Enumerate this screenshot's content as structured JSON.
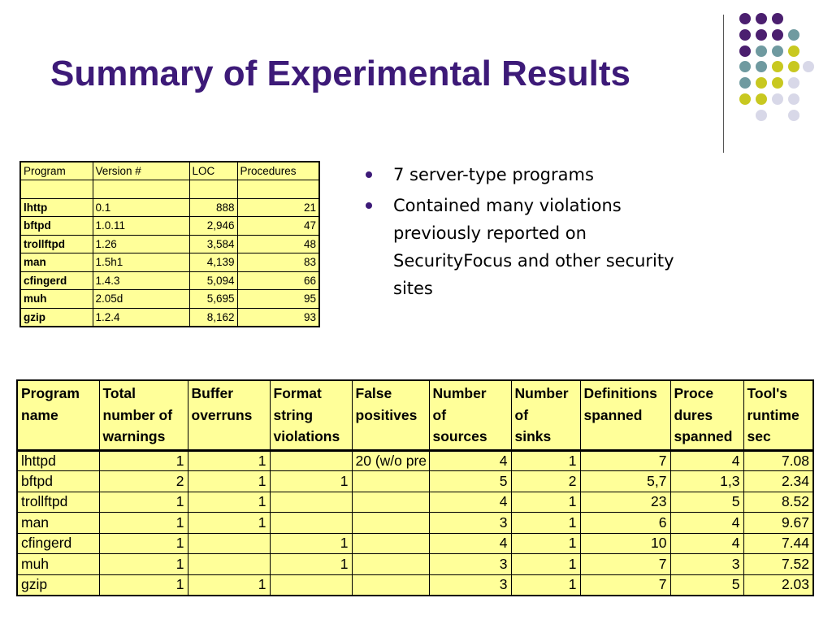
{
  "slide": {
    "title": "Summary of Experimental Results"
  },
  "bullets": [
    "7 server-type programs",
    "Contained many violations previously reported on SecurityFocus and other security sites"
  ],
  "program_table": {
    "headers": [
      "Program",
      "Version #",
      "LOC",
      "Procedures"
    ],
    "rows": [
      [
        "lhttp",
        "0.1",
        "888",
        "21"
      ],
      [
        "bftpd",
        "1.0.11",
        "2,946",
        "47"
      ],
      [
        "trollftpd",
        "1.26",
        "3,584",
        "48"
      ],
      [
        "man",
        "1.5h1",
        "4,139",
        "83"
      ],
      [
        "cfingerd",
        "1.4.3",
        "5,094",
        "66"
      ],
      [
        "muh",
        "2.05d",
        "5,695",
        "95"
      ],
      [
        "gzip",
        "1.2.4",
        "8,162",
        "93"
      ]
    ]
  },
  "results_table": {
    "headers": [
      [
        "Program",
        "name"
      ],
      [
        "Total",
        "number of",
        "warnings"
      ],
      [
        "Buffer",
        "overruns"
      ],
      [
        "Format",
        "string",
        "violations"
      ],
      [
        "False",
        "positives"
      ],
      [
        "Number",
        "of",
        "sources"
      ],
      [
        "Number",
        "of",
        "sinks"
      ],
      [
        "Definitions",
        "spanned"
      ],
      [
        "Proce",
        "dures",
        "spanned"
      ],
      [
        "Tool's",
        "runtime",
        "sec"
      ]
    ],
    "rows": [
      [
        "lhttpd",
        "1",
        "1",
        "",
        "20 (w/o pre",
        "4",
        "1",
        "7",
        "4",
        "7.08"
      ],
      [
        "bftpd",
        "2",
        "1",
        "1",
        "",
        "5",
        "2",
        "5,7",
        "1,3",
        "2.34"
      ],
      [
        "trollftpd",
        "1",
        "1",
        "",
        "",
        "4",
        "1",
        "23",
        "5",
        "8.52"
      ],
      [
        "man",
        "1",
        "1",
        "",
        "",
        "3",
        "1",
        "6",
        "4",
        "9.67"
      ],
      [
        "cfingerd",
        "1",
        "",
        "1",
        "",
        "4",
        "1",
        "10",
        "4",
        "7.44"
      ],
      [
        "muh",
        "1",
        "",
        "1",
        "",
        "3",
        "1",
        "7",
        "3",
        "7.52"
      ],
      [
        "gzip",
        "1",
        "1",
        "",
        "",
        "3",
        "1",
        "7",
        "5",
        "2.03"
      ]
    ]
  },
  "decoration": {
    "dot_colors": [
      "#4b1f6f",
      "#6f9aa0",
      "#c8c820",
      "#d8d8e8"
    ],
    "line_color": "#555555"
  }
}
